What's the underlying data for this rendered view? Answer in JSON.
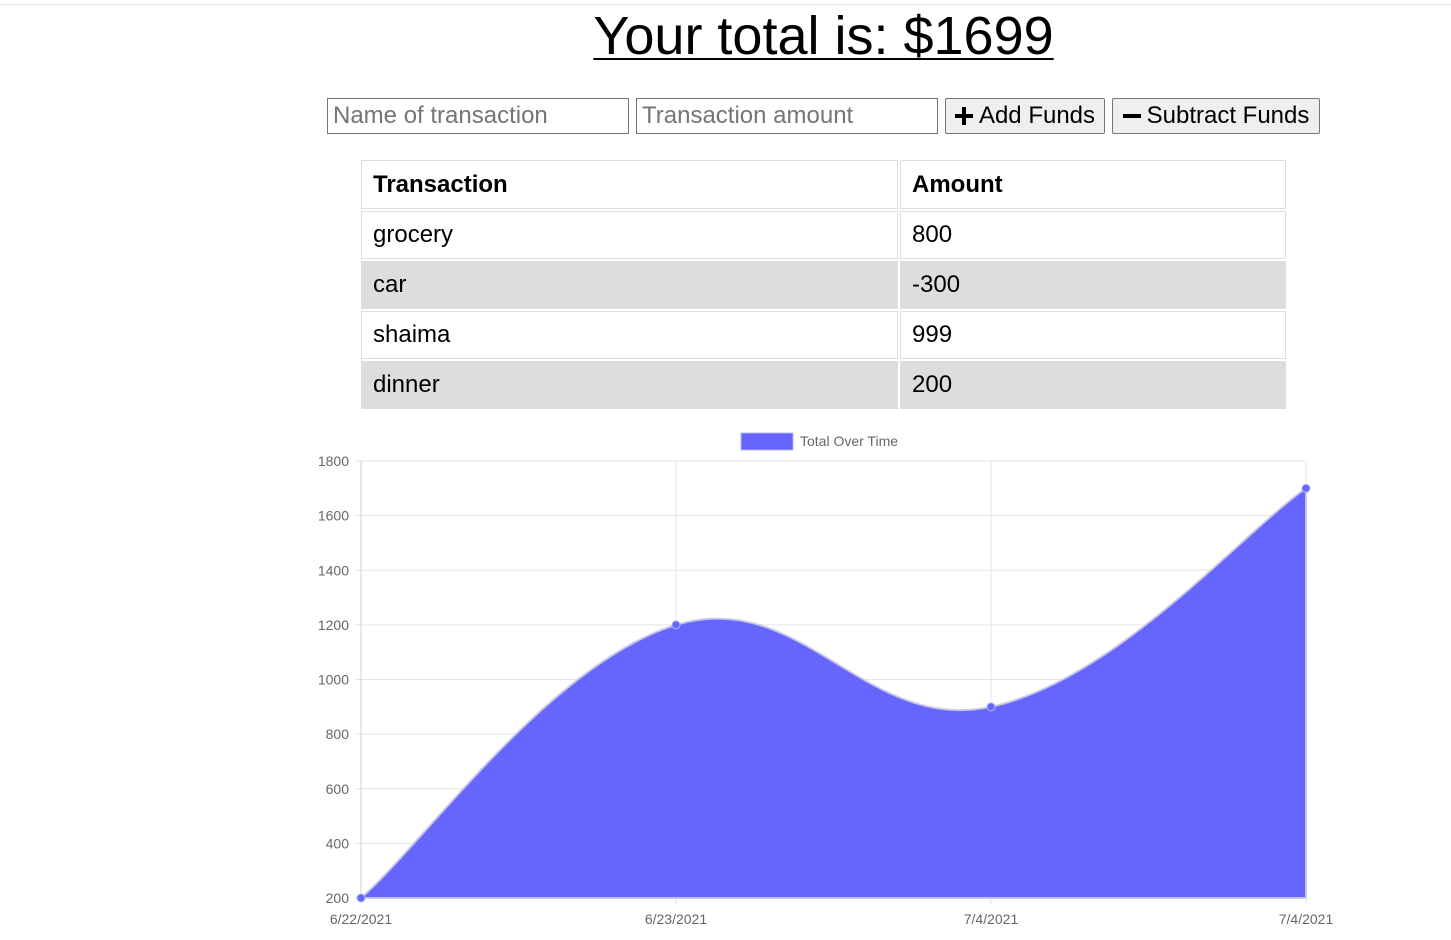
{
  "header": {
    "total_text": "Your total is: $1699"
  },
  "form": {
    "name_placeholder": "Name of transaction",
    "amount_placeholder": "Transaction amount",
    "add_label": "Add Funds",
    "subtract_label": "Subtract Funds"
  },
  "table": {
    "columns": [
      "Transaction",
      "Amount"
    ],
    "rows": [
      {
        "name": "grocery",
        "amount": "800"
      },
      {
        "name": "car",
        "amount": "-300"
      },
      {
        "name": "shaima",
        "amount": "999"
      },
      {
        "name": "dinner",
        "amount": "200"
      }
    ]
  },
  "chart_data": {
    "type": "area",
    "title": "",
    "xlabel": "",
    "ylabel": "",
    "categories": [
      "6/22/2021",
      "6/23/2021",
      "7/4/2021",
      "7/4/2021"
    ],
    "series": [
      {
        "name": "Total Over Time",
        "values": [
          200,
          1200,
          900,
          1700
        ],
        "color": "#6666ff"
      }
    ],
    "ylim": [
      200,
      1800
    ],
    "yticks": [
      200,
      400,
      600,
      800,
      1000,
      1200,
      1400,
      1600,
      1800
    ],
    "grid": true,
    "legend": "top-center"
  }
}
